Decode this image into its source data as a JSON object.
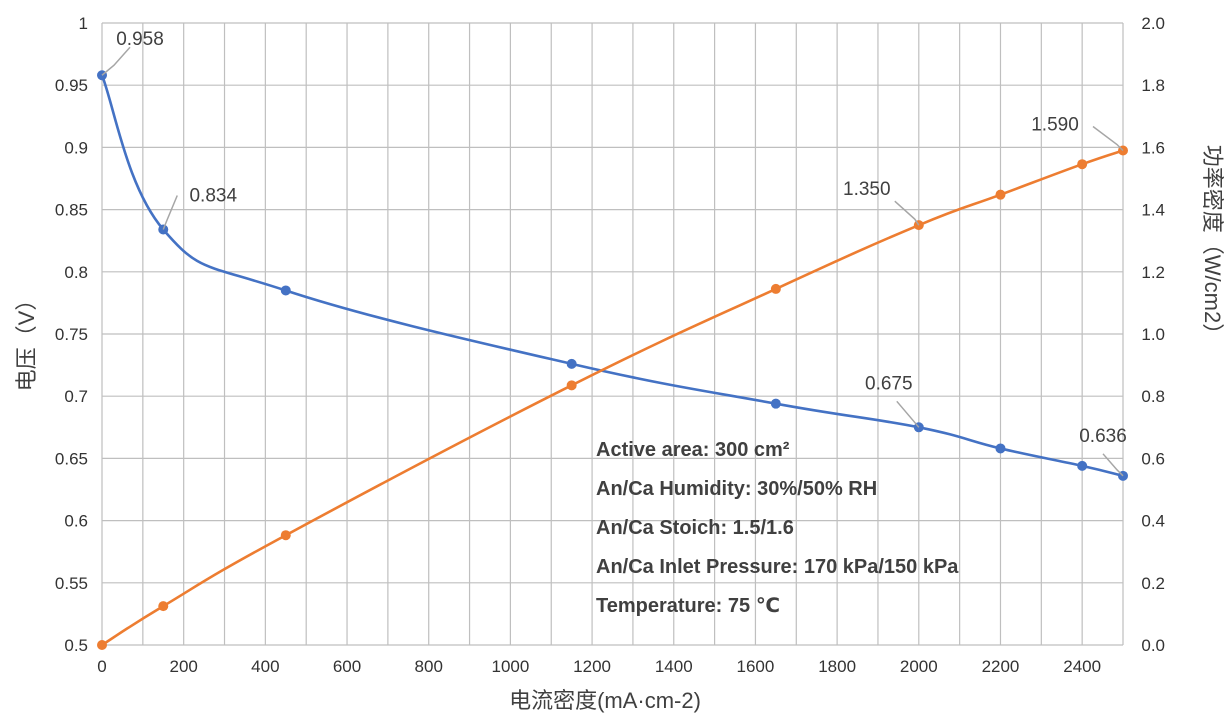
{
  "chart_data": {
    "type": "line",
    "title": "",
    "xlabel": "电流密度(mA·cm-2)",
    "ylabel_left": "电压（V）",
    "ylabel_right": "功率密度（W/cm2）",
    "xlim": [
      0,
      2500
    ],
    "ylim_left": [
      0.5,
      1.0
    ],
    "ylim_right": [
      0.0,
      2.0
    ],
    "x_ticks": [
      "0",
      "200",
      "400",
      "600",
      "800",
      "1000",
      "1200",
      "1400",
      "1600",
      "1800",
      "2000",
      "2200",
      "2400"
    ],
    "y_left_ticks": [
      "0.5",
      "0.55",
      "0.6",
      "0.65",
      "0.7",
      "0.75",
      "0.8",
      "0.85",
      "0.9",
      "0.95",
      "1"
    ],
    "y_right_ticks": [
      "0.0",
      "0.2",
      "0.4",
      "0.6",
      "0.8",
      "1.0",
      "1.2",
      "1.4",
      "1.6",
      "1.8",
      "2.0"
    ],
    "grid": true,
    "legend": "none",
    "series": [
      {
        "axis": "left",
        "color": "#4472C4",
        "points": [
          [
            0,
            0.958
          ],
          [
            150,
            0.834
          ],
          [
            450,
            0.785
          ],
          [
            1150,
            0.726
          ],
          [
            1650,
            0.694
          ],
          [
            2000,
            0.675
          ],
          [
            2200,
            0.658
          ],
          [
            2400,
            0.644
          ],
          [
            2500,
            0.636
          ]
        ]
      },
      {
        "axis": "right",
        "color": "#ED7D31",
        "points": [
          [
            0,
            0.0
          ],
          [
            150,
            0.125
          ],
          [
            450,
            0.353
          ],
          [
            1150,
            0.835
          ],
          [
            1650,
            1.145
          ],
          [
            2000,
            1.35
          ],
          [
            2200,
            1.448
          ],
          [
            2400,
            1.546
          ],
          [
            2500,
            1.59
          ]
        ]
      }
    ],
    "data_labels": [
      {
        "series": 0,
        "index": 0,
        "text": "0.958"
      },
      {
        "series": 0,
        "index": 1,
        "text": "0.834"
      },
      {
        "series": 0,
        "index": 5,
        "text": "0.675"
      },
      {
        "series": 0,
        "index": 8,
        "text": "0.636"
      },
      {
        "series": 1,
        "index": 5,
        "text": "1.350"
      },
      {
        "series": 1,
        "index": 8,
        "text": "1.590"
      }
    ],
    "annotations": [
      "Active area: 300 cm²",
      "An/Ca Humidity: 30%/50% RH",
      "An/Ca Stoich: 1.5/1.6",
      "An/Ca Inlet Pressure: 170 kPa/150 kPa",
      "Temperature:  75 ℃"
    ]
  }
}
